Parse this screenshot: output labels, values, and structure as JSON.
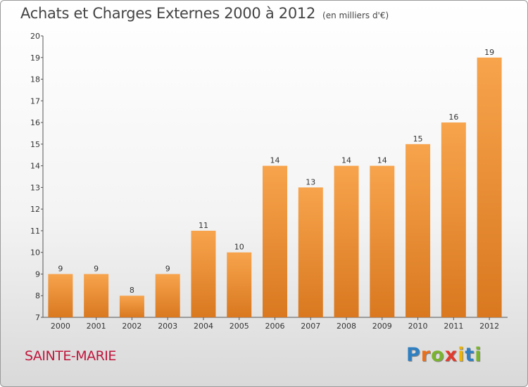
{
  "header": {
    "title": "Achats et Charges Externes 2000 à 2012",
    "subtitle": "(en milliers d'€)"
  },
  "footer": {
    "commune": "SAINTE-MARIE",
    "logo_letters": [
      "P",
      "r",
      "o",
      "x",
      "i",
      "t",
      "i"
    ]
  },
  "colors": {
    "bar_light": "#f7a44d",
    "bar_dark": "#d9781f",
    "commune": "#c0163c",
    "logo": [
      "#2f7fc1",
      "#e8701f",
      "#7ab32e",
      "#e23a2c",
      "#f0b400",
      "#2f7fc1",
      "#7ab32e"
    ]
  },
  "chart_data": {
    "type": "bar",
    "title": "Achats et Charges Externes 2000 à 2012",
    "subtitle": "(en milliers d'€)",
    "categories": [
      "2000",
      "2001",
      "2002",
      "2003",
      "2004",
      "2005",
      "2006",
      "2007",
      "2008",
      "2009",
      "2010",
      "2011",
      "2012"
    ],
    "values": [
      9,
      9,
      8,
      9,
      11,
      10,
      14,
      13,
      14,
      14,
      15,
      16,
      19
    ],
    "ylim": [
      7,
      20
    ],
    "yticks": [
      7,
      8,
      9,
      10,
      11,
      12,
      13,
      14,
      15,
      16,
      17,
      18,
      19,
      20
    ],
    "grid": false,
    "legend": "none"
  }
}
